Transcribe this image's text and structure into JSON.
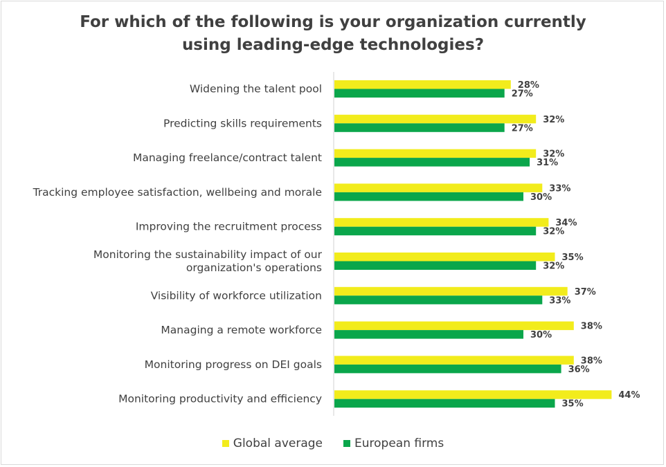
{
  "chart_data": {
    "type": "bar",
    "orientation": "horizontal",
    "title_line1": "For which of the following is your organization currently",
    "title_line2": "using leading-edge technologies?",
    "categories": [
      [
        "Widening the talent pool"
      ],
      [
        "Predicting skills requirements"
      ],
      [
        "Managing freelance/contract talent"
      ],
      [
        "Tracking employee satisfaction, wellbeing and morale"
      ],
      [
        "Improving the recruitment process"
      ],
      [
        "Monitoring the sustainability impact of our",
        "organization's operations"
      ],
      [
        "Visibility of workforce utilization"
      ],
      [
        "Managing a remote workforce"
      ],
      [
        "Monitoring progress on DEI goals"
      ],
      [
        "Monitoring productivity and efficiency"
      ]
    ],
    "series": [
      {
        "name": "Global average",
        "color": "#f2ec1c",
        "values": [
          28,
          32,
          32,
          33,
          34,
          35,
          37,
          38,
          38,
          44
        ],
        "labels": [
          "28%",
          "32%",
          "32%",
          "33%",
          "34%",
          "35%",
          "37%",
          "38%",
          "38%",
          "44%"
        ]
      },
      {
        "name": "European firms",
        "color": "#0aa64b",
        "values": [
          27,
          27,
          31,
          30,
          32,
          32,
          33,
          30,
          36,
          35
        ],
        "labels": [
          "27%",
          "27%",
          "31%",
          "30%",
          "32%",
          "32%",
          "33%",
          "30%",
          "36%",
          "35%"
        ]
      }
    ],
    "xlim": [
      0,
      44
    ],
    "grid": false,
    "legend_position": "bottom"
  }
}
